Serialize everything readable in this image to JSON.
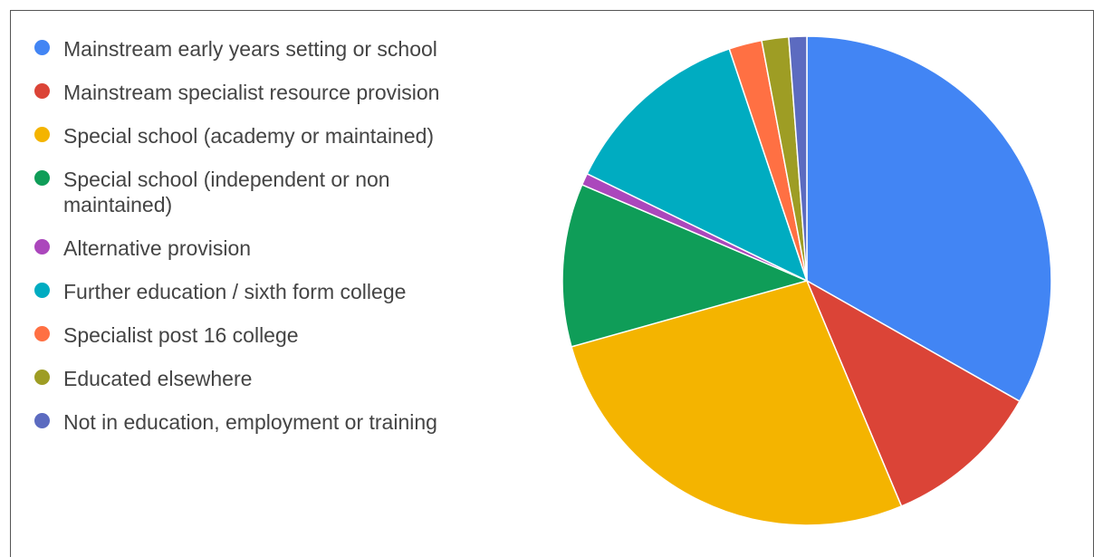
{
  "chart_data": {
    "type": "pie",
    "title": "",
    "legend_position": "left",
    "start_angle": "12 o'clock, clockwise",
    "series": [
      {
        "name": "Mainstream early years setting or school",
        "value": 33.6,
        "color": "#4285F4"
      },
      {
        "name": "Mainstream specialist resource provision",
        "value": 10.6,
        "color": "#DB4437"
      },
      {
        "name": "Special school (academy or maintained)",
        "value": 27.3,
        "color": "#F4B400"
      },
      {
        "name": "Special school (independent or non maintained)",
        "value": 10.9,
        "color": "#0F9D58"
      },
      {
        "name": "Alternative provision",
        "value": 0.8,
        "color": "#AB47BC"
      },
      {
        "name": "Further education / sixth form college",
        "value": 12.8,
        "color": "#00ACC1"
      },
      {
        "name": "Specialist post 16 college",
        "value": 2.2,
        "color": "#FF7043"
      },
      {
        "name": "Educated elsewhere",
        "value": 1.8,
        "color": "#9E9D24"
      },
      {
        "name": "Not in education, employment or training",
        "value": 1.2,
        "color": "#5C6BC0"
      }
    ]
  }
}
